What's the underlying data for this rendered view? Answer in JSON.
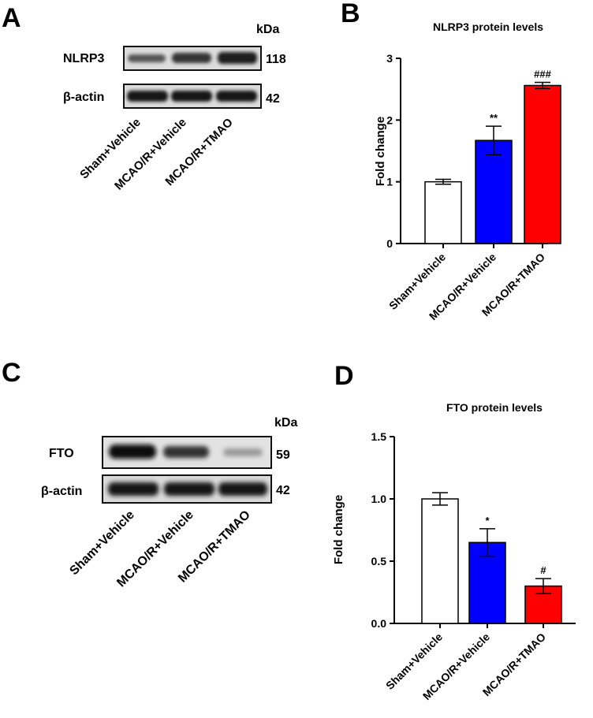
{
  "panels": {
    "A": {
      "letter": "A",
      "kda": "kDa",
      "blots": [
        {
          "protein": "NLRP3",
          "size": "118"
        },
        {
          "protein": "β-actin",
          "size": "42"
        }
      ],
      "lanes": [
        "Sham+Vehicle",
        "MCAO/R+Vehicle",
        "MCAO/R+TMAO"
      ]
    },
    "B": {
      "letter": "B"
    },
    "C": {
      "letter": "C",
      "kda": "kDa",
      "blots": [
        {
          "protein": "FTO",
          "size": "59"
        },
        {
          "protein": "β-actin",
          "size": "42"
        }
      ],
      "lanes": [
        "Sham+Vehicle",
        "MCAO/R+Vehicle",
        "MCAO/R+TMAO"
      ]
    },
    "D": {
      "letter": "D"
    }
  },
  "colors": {
    "sham": "#ffffff",
    "vehicle": "#0000ff",
    "tmao": "#ff0000",
    "ink": "#000000"
  },
  "chart_data": [
    {
      "type": "bar",
      "title": "NLRP3 protein levels",
      "xlabel": "",
      "ylabel": "Fold change",
      "categories": [
        "Sham+Vehicle",
        "MCAO/R+Vehicle",
        "MCAO/R+TMAO"
      ],
      "values": [
        1.0,
        1.67,
        2.56
      ],
      "errors": [
        0.04,
        0.23,
        0.05
      ],
      "annotations": [
        "",
        "**",
        "###"
      ],
      "ylim": [
        0,
        3
      ],
      "yticks": [
        0,
        1,
        2,
        3
      ],
      "ytick_labels": [
        "0",
        "1",
        "2",
        "3"
      ],
      "grid": false,
      "legend": "none"
    },
    {
      "type": "bar",
      "title": "FTO protein levels",
      "xlabel": "",
      "ylabel": "Fold change",
      "categories": [
        "Sham+Vehicle",
        "MCAO/R+Vehicle",
        "MCAO/R+TMAO"
      ],
      "values": [
        1.0,
        0.65,
        0.3
      ],
      "errors": [
        0.05,
        0.11,
        0.06
      ],
      "annotations": [
        "",
        "*",
        "#"
      ],
      "ylim": [
        0,
        1.5
      ],
      "yticks": [
        0,
        0.5,
        1.0,
        1.5
      ],
      "ytick_labels": [
        "0.0",
        "0.5",
        "1.0",
        "1.5"
      ],
      "grid": false,
      "legend": "none"
    }
  ]
}
